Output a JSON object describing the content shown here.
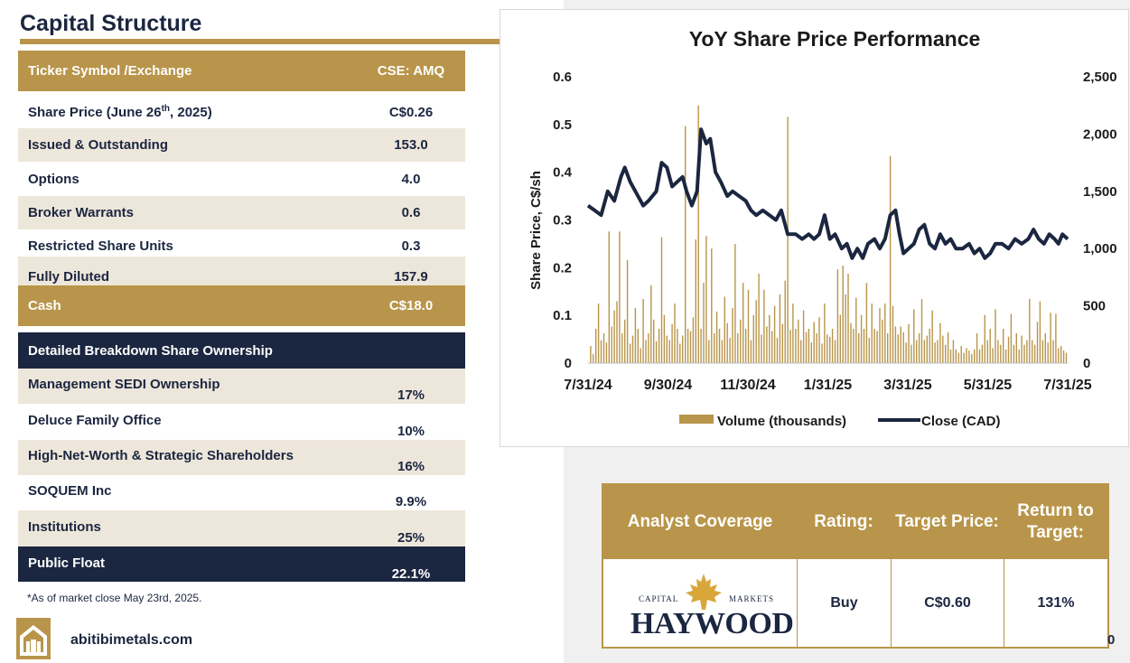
{
  "page_title": "Capital Structure",
  "capital_structure": {
    "ticker": {
      "label": "Ticker Symbol /Exchange",
      "value": "CSE: AMQ"
    },
    "share_price": {
      "label_pre": "Share Price (June 26",
      "label_sup": "th",
      "label_post": ", 2025)",
      "value": "C$0.26"
    },
    "rows": [
      {
        "label": "Issued & Outstanding",
        "value": "153.0"
      },
      {
        "label": "Options",
        "value": "4.0"
      },
      {
        "label": "Broker Warrants",
        "value": "0.6"
      },
      {
        "label": "Restricted Share Units",
        "value": "0.3"
      },
      {
        "label": "Fully Diluted",
        "value": "157.9"
      }
    ],
    "cash": {
      "label": "Cash",
      "value": "C$18.0"
    }
  },
  "ownership": {
    "header": "Detailed Breakdown Share Ownership",
    "rows": [
      {
        "label": "Management SEDI Ownership",
        "value": "17%"
      },
      {
        "label": "Deluce Family Office",
        "value": "10%"
      },
      {
        "label": "High-Net-Worth & Strategic Shareholders",
        "value": "16%"
      },
      {
        "label": "SOQUEM Inc",
        "value": "9.9%"
      },
      {
        "label": "Institutions",
        "value": "25%"
      }
    ],
    "public_float": {
      "label": "Public Float",
      "value": "22.1%"
    }
  },
  "footnote": "*As of market close May 23rd, 2025.",
  "website": "abitibimetals.com",
  "page_number": "0",
  "colors": {
    "gold": "#b8954a",
    "navy": "#1b2640",
    "beige": "#ede6da"
  },
  "analyst": {
    "headers": [
      "Analyst Coverage",
      "Rating:",
      "Target Price:",
      "Return to Target:"
    ],
    "firm_name": "HAYWOOD",
    "firm_tag_left": "CAPITAL",
    "firm_tag_right": "MARKETS",
    "rating": "Buy",
    "target_price": "C$0.60",
    "return_to_target": "131%"
  },
  "chart_data": {
    "type": "line",
    "title": "YoY Share Price Performance",
    "ylabel": "Share Price, C$/sh",
    "y2label": "",
    "x_tick_labels": [
      "7/31/24",
      "9/30/24",
      "11/30/24",
      "1/31/25",
      "3/31/25",
      "5/31/25",
      "7/31/25"
    ],
    "y_ticks": [
      "0",
      "0.1",
      "0.2",
      "0.3",
      "0.4",
      "0.5",
      "0.6"
    ],
    "y2_ticks": [
      "0",
      "500",
      "1,000",
      "1,500",
      "2,000",
      "2,500"
    ],
    "ylim": [
      0,
      0.6
    ],
    "y2lim": [
      0,
      2500
    ],
    "x_range_days": [
      0,
      365
    ],
    "legend": [
      "Volume (thousands)",
      "Close (CAD)"
    ],
    "series": [
      {
        "name": "Close (CAD)",
        "axis": "left",
        "points": [
          [
            0,
            0.33
          ],
          [
            5,
            0.32
          ],
          [
            10,
            0.31
          ],
          [
            15,
            0.36
          ],
          [
            20,
            0.34
          ],
          [
            25,
            0.39
          ],
          [
            28,
            0.41
          ],
          [
            32,
            0.38
          ],
          [
            38,
            0.35
          ],
          [
            42,
            0.33
          ],
          [
            46,
            0.34
          ],
          [
            52,
            0.36
          ],
          [
            56,
            0.42
          ],
          [
            60,
            0.41
          ],
          [
            64,
            0.37
          ],
          [
            68,
            0.38
          ],
          [
            72,
            0.39
          ],
          [
            75,
            0.36
          ],
          [
            79,
            0.33
          ],
          [
            83,
            0.36
          ],
          [
            86,
            0.49
          ],
          [
            90,
            0.46
          ],
          [
            93,
            0.47
          ],
          [
            97,
            0.4
          ],
          [
            101,
            0.38
          ],
          [
            106,
            0.35
          ],
          [
            110,
            0.36
          ],
          [
            115,
            0.35
          ],
          [
            120,
            0.34
          ],
          [
            124,
            0.32
          ],
          [
            128,
            0.31
          ],
          [
            133,
            0.32
          ],
          [
            138,
            0.31
          ],
          [
            143,
            0.3
          ],
          [
            147,
            0.32
          ],
          [
            152,
            0.27
          ],
          [
            158,
            0.27
          ],
          [
            163,
            0.26
          ],
          [
            168,
            0.27
          ],
          [
            172,
            0.26
          ],
          [
            176,
            0.27
          ],
          [
            180,
            0.31
          ],
          [
            184,
            0.26
          ],
          [
            188,
            0.27
          ],
          [
            193,
            0.24
          ],
          [
            197,
            0.25
          ],
          [
            201,
            0.22
          ],
          [
            205,
            0.24
          ],
          [
            209,
            0.22
          ],
          [
            213,
            0.25
          ],
          [
            218,
            0.26
          ],
          [
            222,
            0.24
          ],
          [
            226,
            0.26
          ],
          [
            230,
            0.31
          ],
          [
            234,
            0.32
          ],
          [
            237,
            0.27
          ],
          [
            240,
            0.23
          ],
          [
            244,
            0.24
          ],
          [
            248,
            0.25
          ],
          [
            252,
            0.28
          ],
          [
            256,
            0.29
          ],
          [
            260,
            0.25
          ],
          [
            264,
            0.24
          ],
          [
            268,
            0.27
          ],
          [
            272,
            0.25
          ],
          [
            276,
            0.26
          ],
          [
            280,
            0.24
          ],
          [
            285,
            0.24
          ],
          [
            290,
            0.25
          ],
          [
            294,
            0.23
          ],
          [
            298,
            0.24
          ],
          [
            302,
            0.22
          ],
          [
            306,
            0.23
          ],
          [
            310,
            0.25
          ],
          [
            315,
            0.25
          ],
          [
            320,
            0.24
          ],
          [
            325,
            0.26
          ],
          [
            330,
            0.25
          ],
          [
            335,
            0.26
          ],
          [
            339,
            0.28
          ],
          [
            343,
            0.26
          ],
          [
            347,
            0.25
          ],
          [
            351,
            0.27
          ],
          [
            355,
            0.26
          ],
          [
            358,
            0.25
          ],
          [
            361,
            0.27
          ],
          [
            365,
            0.26
          ]
        ]
      },
      {
        "name": "Volume (thousands)",
        "axis": "right",
        "type": "bar",
        "points": [
          [
            2,
            150
          ],
          [
            4,
            80
          ],
          [
            6,
            300
          ],
          [
            8,
            520
          ],
          [
            10,
            200
          ],
          [
            12,
            260
          ],
          [
            14,
            180
          ],
          [
            16,
            1150
          ],
          [
            18,
            320
          ],
          [
            20,
            460
          ],
          [
            22,
            540
          ],
          [
            24,
            1150
          ],
          [
            26,
            260
          ],
          [
            28,
            380
          ],
          [
            30,
            900
          ],
          [
            32,
            170
          ],
          [
            34,
            240
          ],
          [
            36,
            480
          ],
          [
            38,
            300
          ],
          [
            40,
            130
          ],
          [
            42,
            560
          ],
          [
            44,
            200
          ],
          [
            46,
            260
          ],
          [
            48,
            680
          ],
          [
            50,
            380
          ],
          [
            52,
            190
          ],
          [
            54,
            300
          ],
          [
            56,
            1100
          ],
          [
            58,
            420
          ],
          [
            60,
            240
          ],
          [
            62,
            200
          ],
          [
            64,
            340
          ],
          [
            66,
            520
          ],
          [
            68,
            300
          ],
          [
            70,
            170
          ],
          [
            72,
            240
          ],
          [
            74,
            2070
          ],
          [
            76,
            300
          ],
          [
            78,
            280
          ],
          [
            80,
            400
          ],
          [
            82,
            1080
          ],
          [
            84,
            2250
          ],
          [
            86,
            300
          ],
          [
            88,
            700
          ],
          [
            90,
            1110
          ],
          [
            92,
            200
          ],
          [
            94,
            1000
          ],
          [
            96,
            260
          ],
          [
            98,
            450
          ],
          [
            100,
            300
          ],
          [
            102,
            200
          ],
          [
            104,
            580
          ],
          [
            106,
            350
          ],
          [
            108,
            220
          ],
          [
            110,
            480
          ],
          [
            112,
            1040
          ],
          [
            114,
            260
          ],
          [
            116,
            380
          ],
          [
            118,
            700
          ],
          [
            120,
            300
          ],
          [
            122,
            640
          ],
          [
            124,
            200
          ],
          [
            126,
            420
          ],
          [
            128,
            550
          ],
          [
            130,
            780
          ],
          [
            132,
            250
          ],
          [
            134,
            640
          ],
          [
            136,
            320
          ],
          [
            138,
            420
          ],
          [
            140,
            280
          ],
          [
            142,
            500
          ],
          [
            144,
            220
          ],
          [
            146,
            600
          ],
          [
            148,
            340
          ],
          [
            150,
            720
          ],
          [
            152,
            2150
          ],
          [
            154,
            290
          ],
          [
            156,
            520
          ],
          [
            158,
            300
          ],
          [
            160,
            380
          ],
          [
            162,
            200
          ],
          [
            164,
            460
          ],
          [
            166,
            270
          ],
          [
            168,
            300
          ],
          [
            170,
            180
          ],
          [
            172,
            360
          ],
          [
            174,
            260
          ],
          [
            176,
            400
          ],
          [
            178,
            170
          ],
          [
            180,
            520
          ],
          [
            182,
            250
          ],
          [
            184,
            230
          ],
          [
            186,
            300
          ],
          [
            188,
            200
          ],
          [
            190,
            820
          ],
          [
            192,
            420
          ],
          [
            194,
            850
          ],
          [
            196,
            600
          ],
          [
            198,
            780
          ],
          [
            200,
            350
          ],
          [
            202,
            300
          ],
          [
            204,
            570
          ],
          [
            206,
            260
          ],
          [
            208,
            420
          ],
          [
            210,
            300
          ],
          [
            212,
            700
          ],
          [
            214,
            220
          ],
          [
            216,
            520
          ],
          [
            218,
            300
          ],
          [
            220,
            280
          ],
          [
            222,
            480
          ],
          [
            224,
            380
          ],
          [
            226,
            520
          ],
          [
            228,
            260
          ],
          [
            230,
            1810
          ],
          [
            232,
            500
          ],
          [
            234,
            320
          ],
          [
            236,
            250
          ],
          [
            238,
            320
          ],
          [
            240,
            270
          ],
          [
            242,
            180
          ],
          [
            244,
            340
          ],
          [
            246,
            160
          ],
          [
            248,
            470
          ],
          [
            250,
            200
          ],
          [
            252,
            260
          ],
          [
            254,
            560
          ],
          [
            256,
            200
          ],
          [
            258,
            240
          ],
          [
            260,
            300
          ],
          [
            262,
            460
          ],
          [
            264,
            180
          ],
          [
            266,
            200
          ],
          [
            268,
            350
          ],
          [
            270,
            240
          ],
          [
            272,
            160
          ],
          [
            274,
            270
          ],
          [
            276,
            120
          ],
          [
            278,
            200
          ],
          [
            280,
            120
          ],
          [
            282,
            90
          ],
          [
            284,
            150
          ],
          [
            286,
            90
          ],
          [
            288,
            130
          ],
          [
            290,
            110
          ],
          [
            292,
            80
          ],
          [
            294,
            120
          ],
          [
            296,
            260
          ],
          [
            298,
            120
          ],
          [
            300,
            160
          ],
          [
            302,
            420
          ],
          [
            304,
            200
          ],
          [
            306,
            300
          ],
          [
            308,
            130
          ],
          [
            310,
            470
          ],
          [
            312,
            200
          ],
          [
            314,
            160
          ],
          [
            316,
            300
          ],
          [
            318,
            120
          ],
          [
            320,
            230
          ],
          [
            322,
            430
          ],
          [
            324,
            160
          ],
          [
            326,
            260
          ],
          [
            328,
            120
          ],
          [
            330,
            240
          ],
          [
            332,
            160
          ],
          [
            334,
            200
          ],
          [
            336,
            560
          ],
          [
            338,
            200
          ],
          [
            340,
            160
          ],
          [
            342,
            360
          ],
          [
            344,
            540
          ],
          [
            346,
            200
          ],
          [
            348,
            260
          ],
          [
            350,
            180
          ],
          [
            352,
            440
          ],
          [
            354,
            200
          ],
          [
            356,
            430
          ],
          [
            358,
            130
          ],
          [
            360,
            150
          ],
          [
            362,
            110
          ],
          [
            364,
            90
          ]
        ]
      }
    ]
  }
}
